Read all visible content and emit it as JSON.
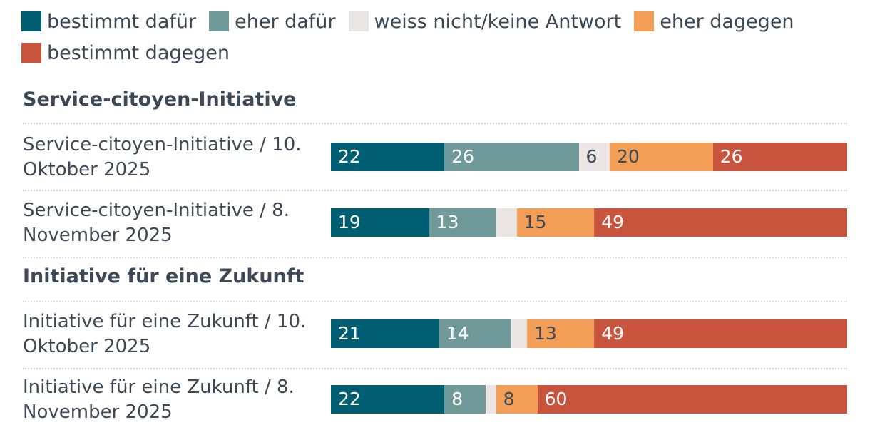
{
  "chart_data": {
    "type": "bar",
    "orientation": "horizontal",
    "stacked": true,
    "legend": [
      {
        "key": "bestimmt_dafuer",
        "label": "bestimmt dafür",
        "color": "#005e73",
        "text_color": "#ffffff"
      },
      {
        "key": "eher_dafuer",
        "label": "eher dafür",
        "color": "#6f9a99",
        "text_color": "#ffffff"
      },
      {
        "key": "weiss_nicht",
        "label": "weiss nicht/keine Antwort",
        "color": "#ebe6e3",
        "text_color": "#3d4a56"
      },
      {
        "key": "eher_dagegen",
        "label": "eher dagegen",
        "color": "#f39e56",
        "text_color": "#3d4a56"
      },
      {
        "key": "bestimmt_dagegen",
        "label": "bestimmt dagegen",
        "color": "#c9543e",
        "text_color": "#ffffff"
      }
    ],
    "groups": [
      {
        "title": "Service-citoyen-Initiative",
        "rows": [
          {
            "label": "Service-citoyen-Initiative / 10. Oktober 2025",
            "values": [
              22,
              26,
              6,
              20,
              26
            ],
            "value_labels": [
              "22",
              "26",
              "6",
              "20",
              "26"
            ]
          },
          {
            "label": "Service-citoyen-Initiative / 8. November 2025",
            "values": [
              19,
              13,
              4,
              15,
              49
            ],
            "value_labels": [
              "19",
              "13",
              "",
              "15",
              "49"
            ]
          }
        ]
      },
      {
        "title": "Initiative für eine Zukunft",
        "rows": [
          {
            "label": "Initiative für eine Zukunft / 10. Oktober 2025",
            "values": [
              21,
              14,
              3,
              13,
              49
            ],
            "value_labels": [
              "21",
              "14",
              "",
              "13",
              "49"
            ]
          },
          {
            "label": "Initiative für eine Zukunft / 8. November 2025",
            "values": [
              22,
              8,
              2,
              8,
              60
            ],
            "value_labels": [
              "22",
              "8",
              "",
              "8",
              "60"
            ]
          }
        ]
      }
    ],
    "xlim": [
      0,
      100
    ],
    "unit": "%"
  }
}
